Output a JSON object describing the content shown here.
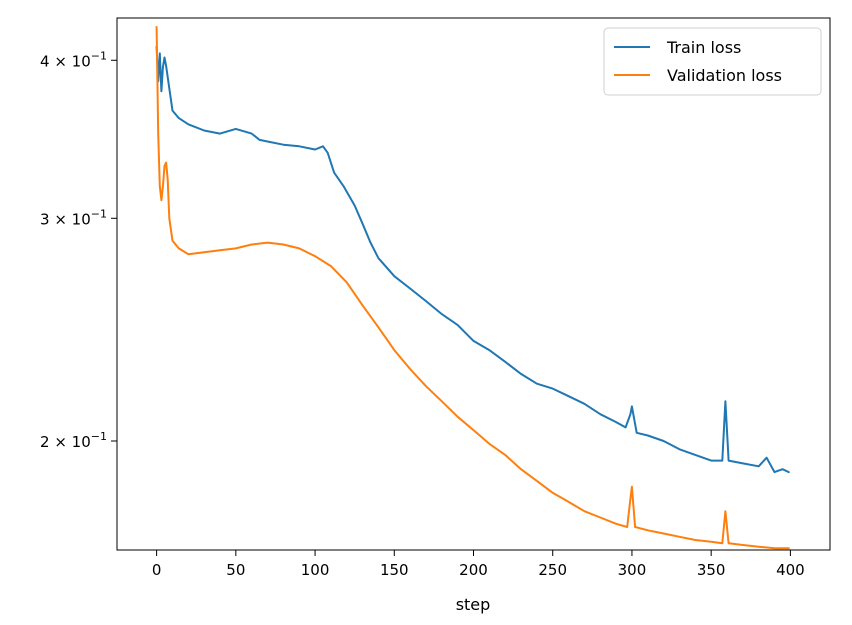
{
  "chart_data": {
    "type": "line",
    "title": "",
    "xlabel": "step",
    "ylabel": "",
    "yscale": "log",
    "xlim": [
      -25,
      425
    ],
    "ylim": [
      0.164,
      0.432
    ],
    "grid": false,
    "legend_position": "top-right",
    "x_ticks": [
      0,
      50,
      100,
      150,
      200,
      250,
      300,
      350,
      400
    ],
    "x_tick_labels": [
      "0",
      "50",
      "100",
      "150",
      "200",
      "250",
      "300",
      "350",
      "400"
    ],
    "y_ticks": [
      0.2,
      0.3,
      0.4
    ],
    "y_tick_labels": [
      {
        "base": "2",
        "times": "×",
        "mant": "10",
        "exp": "−1"
      },
      {
        "base": "3",
        "times": "×",
        "mant": "10",
        "exp": "−1"
      },
      {
        "base": "4",
        "times": "×",
        "mant": "10",
        "exp": "−1"
      }
    ],
    "series": [
      {
        "name": "Train loss",
        "color": "#1f77b4",
        "points": [
          [
            0,
            0.41
          ],
          [
            1,
            0.385
          ],
          [
            2,
            0.405
          ],
          [
            3,
            0.378
          ],
          [
            4,
            0.395
          ],
          [
            5,
            0.402
          ],
          [
            6,
            0.396
          ],
          [
            8,
            0.38
          ],
          [
            10,
            0.365
          ],
          [
            14,
            0.36
          ],
          [
            20,
            0.356
          ],
          [
            30,
            0.352
          ],
          [
            40,
            0.35
          ],
          [
            50,
            0.353
          ],
          [
            60,
            0.35
          ],
          [
            65,
            0.346
          ],
          [
            70,
            0.345
          ],
          [
            80,
            0.343
          ],
          [
            90,
            0.342
          ],
          [
            100,
            0.34
          ],
          [
            105,
            0.342
          ],
          [
            108,
            0.338
          ],
          [
            112,
            0.326
          ],
          [
            118,
            0.318
          ],
          [
            125,
            0.307
          ],
          [
            130,
            0.297
          ],
          [
            135,
            0.287
          ],
          [
            140,
            0.279
          ],
          [
            150,
            0.27
          ],
          [
            160,
            0.264
          ],
          [
            170,
            0.258
          ],
          [
            180,
            0.252
          ],
          [
            190,
            0.247
          ],
          [
            200,
            0.24
          ],
          [
            210,
            0.236
          ],
          [
            220,
            0.231
          ],
          [
            230,
            0.226
          ],
          [
            240,
            0.222
          ],
          [
            250,
            0.22
          ],
          [
            260,
            0.217
          ],
          [
            270,
            0.214
          ],
          [
            280,
            0.21
          ],
          [
            290,
            0.207
          ],
          [
            296,
            0.205
          ],
          [
            299,
            0.21
          ],
          [
            300,
            0.213
          ],
          [
            303,
            0.203
          ],
          [
            310,
            0.202
          ],
          [
            320,
            0.2
          ],
          [
            330,
            0.197
          ],
          [
            340,
            0.195
          ],
          [
            350,
            0.193
          ],
          [
            357,
            0.193
          ],
          [
            359,
            0.215
          ],
          [
            361,
            0.193
          ],
          [
            370,
            0.192
          ],
          [
            380,
            0.191
          ],
          [
            385,
            0.194
          ],
          [
            390,
            0.189
          ],
          [
            395,
            0.19
          ],
          [
            399,
            0.189
          ]
        ]
      },
      {
        "name": "Validation loss",
        "color": "#ff7f0e",
        "points": [
          [
            0,
            0.425
          ],
          [
            1,
            0.35
          ],
          [
            2,
            0.318
          ],
          [
            3,
            0.31
          ],
          [
            4,
            0.318
          ],
          [
            5,
            0.33
          ],
          [
            6,
            0.332
          ],
          [
            7,
            0.322
          ],
          [
            8,
            0.3
          ],
          [
            10,
            0.288
          ],
          [
            14,
            0.284
          ],
          [
            20,
            0.281
          ],
          [
            30,
            0.282
          ],
          [
            40,
            0.283
          ],
          [
            50,
            0.284
          ],
          [
            60,
            0.286
          ],
          [
            70,
            0.287
          ],
          [
            80,
            0.286
          ],
          [
            90,
            0.284
          ],
          [
            100,
            0.28
          ],
          [
            110,
            0.275
          ],
          [
            120,
            0.267
          ],
          [
            130,
            0.256
          ],
          [
            140,
            0.246
          ],
          [
            150,
            0.236
          ],
          [
            160,
            0.228
          ],
          [
            170,
            0.221
          ],
          [
            180,
            0.215
          ],
          [
            190,
            0.209
          ],
          [
            200,
            0.204
          ],
          [
            210,
            0.199
          ],
          [
            220,
            0.195
          ],
          [
            230,
            0.19
          ],
          [
            240,
            0.186
          ],
          [
            250,
            0.182
          ],
          [
            260,
            0.179
          ],
          [
            270,
            0.176
          ],
          [
            280,
            0.174
          ],
          [
            290,
            0.172
          ],
          [
            297,
            0.171
          ],
          [
            299,
            0.18
          ],
          [
            300,
            0.184
          ],
          [
            302,
            0.171
          ],
          [
            310,
            0.17
          ],
          [
            320,
            0.169
          ],
          [
            330,
            0.168
          ],
          [
            340,
            0.167
          ],
          [
            350,
            0.1665
          ],
          [
            357,
            0.166
          ],
          [
            359,
            0.176
          ],
          [
            361,
            0.166
          ],
          [
            370,
            0.1655
          ],
          [
            380,
            0.165
          ],
          [
            390,
            0.1645
          ],
          [
            399,
            0.1645
          ]
        ]
      }
    ]
  }
}
